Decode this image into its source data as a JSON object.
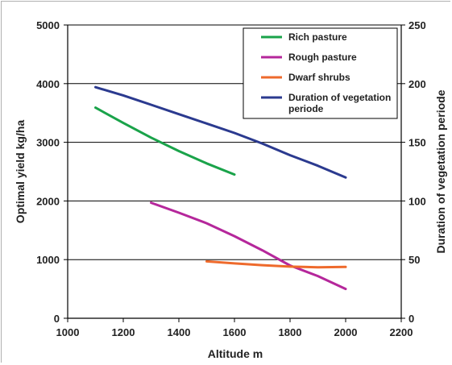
{
  "chart_data": {
    "type": "line",
    "title": "",
    "xlabel": "Altitude m",
    "ylabel": "Optimal yield kg/ha",
    "y2label": "Duration of vegetation periode",
    "xlim": [
      1000,
      2200
    ],
    "ylim": [
      0,
      5000
    ],
    "y2lim": [
      0,
      250
    ],
    "xticks": [
      "1000",
      "1200",
      "1400",
      "1600",
      "1800",
      "2000",
      "2200"
    ],
    "yticks": [
      "0",
      "1000",
      "2000",
      "3000",
      "4000",
      "5000"
    ],
    "y2ticks": [
      "0",
      "50",
      "100",
      "150",
      "200",
      "250"
    ],
    "grid": "horizontal",
    "legend_position": "top-right",
    "series": [
      {
        "name": "Rich pasture",
        "axis": "left",
        "color": "#1aa34a",
        "x": [
          1100,
          1200,
          1300,
          1400,
          1500,
          1600
        ],
        "y": [
          3590,
          3330,
          3080,
          2850,
          2640,
          2450
        ]
      },
      {
        "name": "Rough pasture",
        "axis": "left",
        "color": "#b5279b",
        "x": [
          1300,
          1400,
          1500,
          1600,
          1700,
          1800,
          1900,
          2000
        ],
        "y": [
          1970,
          1800,
          1620,
          1400,
          1160,
          900,
          720,
          500
        ]
      },
      {
        "name": "Dwarf shrubs",
        "axis": "left",
        "color": "#ee6a2c",
        "x": [
          1500,
          1600,
          1700,
          1800,
          1900,
          2000
        ],
        "y": [
          970,
          935,
          905,
          880,
          870,
          875
        ]
      },
      {
        "name": "Duration of vegetation\nperiode",
        "axis": "right",
        "color": "#2b3a8f",
        "x": [
          1100,
          1200,
          1300,
          1400,
          1500,
          1600,
          1700,
          1800,
          1900,
          2000
        ],
        "y": [
          197,
          190,
          182,
          174,
          166,
          158,
          149,
          139,
          130,
          120
        ]
      }
    ]
  }
}
